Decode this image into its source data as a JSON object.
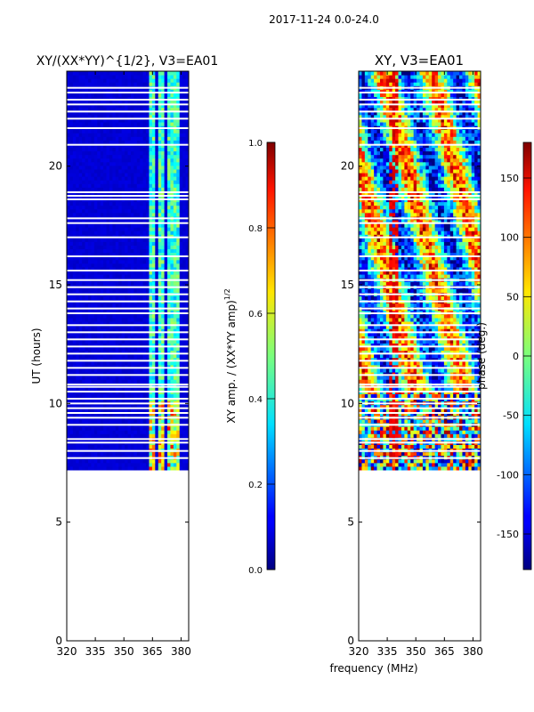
{
  "suptitle": "2017-11-24 0.0-24.0",
  "chart_data": [
    {
      "type": "heatmap",
      "title": "XY/(XX*YY)^{1/2}, V3=EA01",
      "title_main": "XY/(XX*YY)",
      "title_sup": "1/2",
      "title_tail": ", V3=EA01",
      "xlabel": "",
      "ylabel": "UT (hours)",
      "xlim": [
        320,
        384
      ],
      "ylim": [
        0,
        24
      ],
      "xticks": [
        "320",
        "335",
        "350",
        "365",
        "380"
      ],
      "yticks": [
        "0",
        "5",
        "10",
        "15",
        "20"
      ],
      "data_time_range": [
        7.2,
        24
      ],
      "colorbar": {
        "label": "XY amp. / (XX*YY amp)^{1/2}",
        "label_main": "XY amp. / (XX*YY amp)",
        "label_sup": "1/2",
        "range": [
          0,
          1
        ],
        "ticks": [
          "0.0",
          "0.2",
          "0.4",
          "0.6",
          "0.8",
          "1.0"
        ]
      }
    },
    {
      "type": "heatmap",
      "title": "XY, V3=EA01",
      "xlabel": "frequency (MHz)",
      "ylabel": "",
      "xlim": [
        320,
        384
      ],
      "ylim": [
        0,
        24
      ],
      "xticks": [
        "320",
        "335",
        "350",
        "365",
        "380"
      ],
      "yticks": [
        "0",
        "5",
        "10",
        "15",
        "20"
      ],
      "data_time_range": [
        7.2,
        24
      ],
      "colorbar": {
        "label": "phase (deg.)",
        "range": [
          -180,
          180
        ],
        "ticks": [
          "-150",
          "-100",
          "-50",
          "0",
          "50",
          "100",
          "150"
        ]
      }
    }
  ],
  "flagged_times": [
    7.7,
    8.0,
    8.35,
    8.5,
    9.1,
    9.4,
    9.6,
    9.8,
    10.0,
    10.2,
    10.5,
    10.7,
    10.8,
    11.2,
    11.5,
    11.8,
    12.1,
    12.4,
    12.7,
    13.0,
    13.3,
    13.8,
    14.0,
    14.3,
    14.6,
    14.9,
    15.2,
    15.6,
    16.2,
    17.0,
    17.6,
    17.8,
    18.6,
    18.75,
    18.9,
    20.9,
    21.6,
    22.0,
    22.3,
    22.6,
    22.8,
    23.1,
    23.3
  ]
}
